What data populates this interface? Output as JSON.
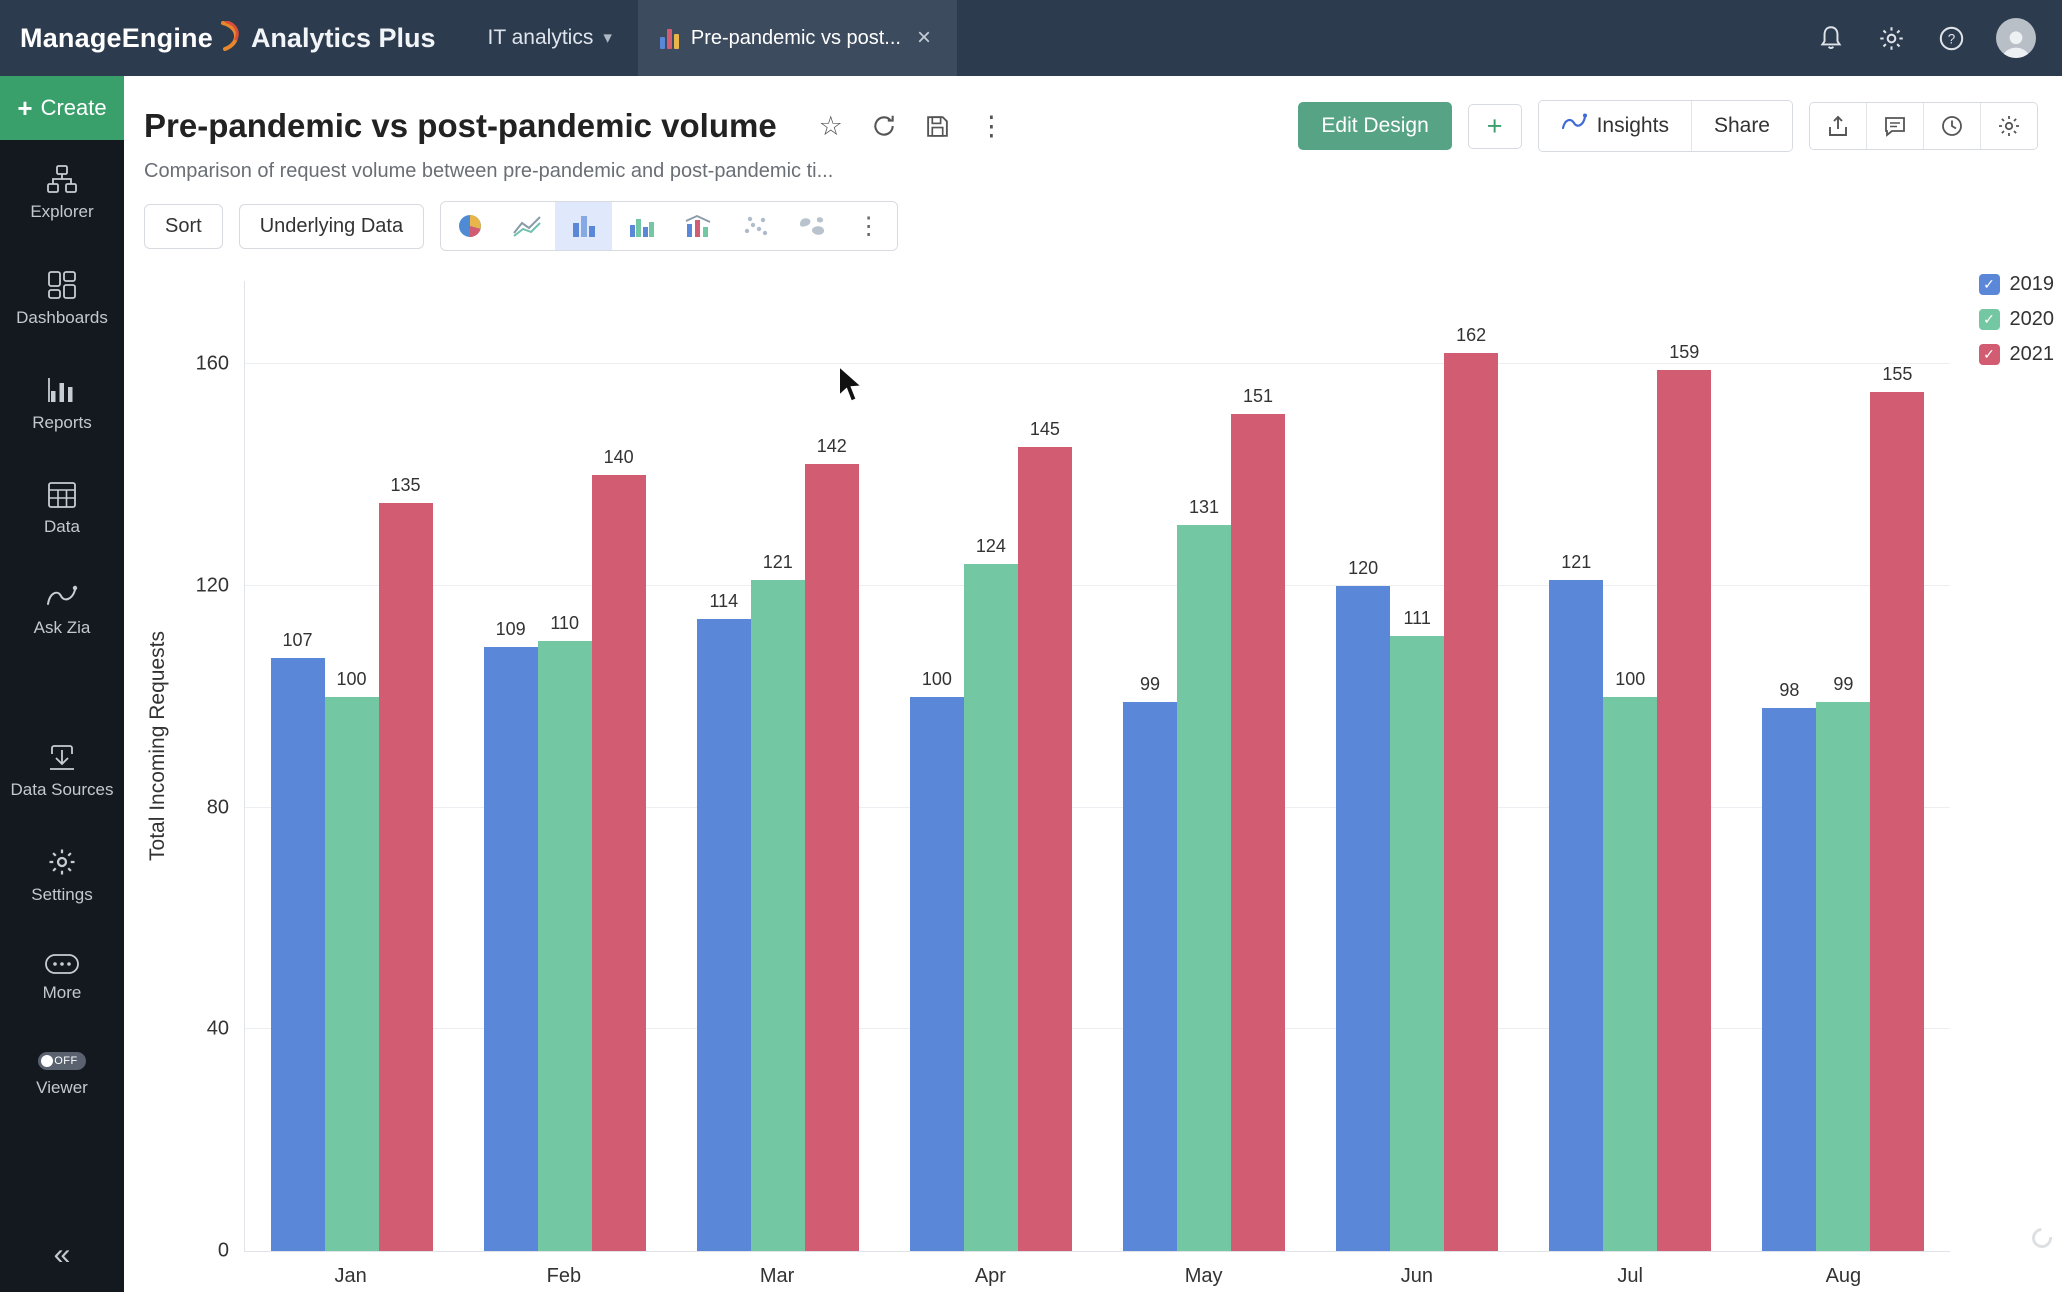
{
  "topbar": {
    "brand_part1": "ManageEngine",
    "brand_part2": "Analytics Plus",
    "workspace_tab": "IT analytics",
    "report_tab_title": "Pre-pandemic vs post..."
  },
  "sidebar": {
    "create_label": "Create",
    "items": [
      {
        "label": "Explorer"
      },
      {
        "label": "Dashboards"
      },
      {
        "label": "Reports"
      },
      {
        "label": "Data"
      },
      {
        "label": "Ask Zia"
      },
      {
        "label": "Data Sources"
      },
      {
        "label": "Settings"
      },
      {
        "label": "More"
      }
    ],
    "viewer_label": "Viewer",
    "viewer_toggle": "OFF"
  },
  "header": {
    "title": "Pre-pandemic vs post-pandemic volume",
    "subtitle": "Comparison of request volume between pre-pandemic and post-pandemic ti...",
    "edit_design_label": "Edit Design",
    "insights_label": "Insights",
    "share_label": "Share"
  },
  "toolbar": {
    "sort_label": "Sort",
    "underlying_data_label": "Underlying Data"
  },
  "icons": {
    "favorite": "☆",
    "more_vertical": "⋮",
    "close": "×",
    "caret_down": "▾",
    "check": "✓",
    "collapse": "«",
    "add": "+"
  },
  "colors": {
    "accent_green": "#57a385",
    "create_green": "#3aa06b",
    "topbar": "#2d3b4f",
    "series_2019": "#5b87d8",
    "series_2020": "#74c7a3",
    "series_2021": "#d25c72"
  },
  "chart_data": {
    "type": "bar",
    "title": "Pre-pandemic vs post-pandemic volume",
    "categories": [
      "Jan",
      "Feb",
      "Mar",
      "Apr",
      "May",
      "Jun",
      "Jul",
      "Aug"
    ],
    "series": [
      {
        "name": "2019",
        "color": "#5b87d8",
        "values": [
          107,
          109,
          114,
          100,
          99,
          120,
          121,
          98
        ]
      },
      {
        "name": "2020",
        "color": "#74c7a3",
        "values": [
          100,
          110,
          121,
          124,
          131,
          111,
          100,
          99
        ]
      },
      {
        "name": "2021",
        "color": "#d25c72",
        "values": [
          135,
          140,
          142,
          145,
          151,
          162,
          159,
          155
        ]
      }
    ],
    "xlabel": "",
    "ylabel": "Total Incoming Requests",
    "yticks": [
      0,
      40,
      80,
      120,
      160
    ],
    "ylim": [
      0,
      175
    ],
    "grid": true,
    "legend_position": "top-right"
  }
}
